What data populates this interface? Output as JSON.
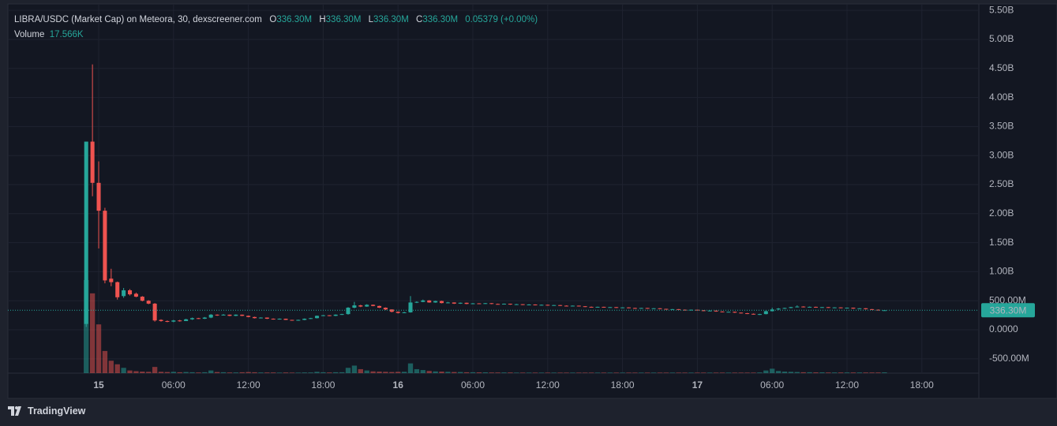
{
  "chart_data": {
    "type": "candlestick",
    "legend": {
      "title": "LIBRA/USDC (Market Cap) on Meteora, 30, dexscreener.com",
      "o": "O",
      "o_value": "336.30M",
      "h": "H",
      "h_value": "336.30M",
      "l": "L",
      "l_value": "336.30M",
      "c": "C",
      "c_value": "336.30M",
      "change": "0.05379 (+0.00%)",
      "volume": "Volume",
      "volume_value": "17.566K"
    },
    "last_price_label": "336.30M",
    "up_color": "#26a69a",
    "down_color": "#ef5350",
    "xlim": [
      -7.28,
      70.57
    ],
    "xticks": [
      {
        "value": 0,
        "label": "15"
      },
      {
        "value": 6,
        "label": "06:00"
      },
      {
        "value": 12,
        "label": "12:00"
      },
      {
        "value": 18,
        "label": "18:00"
      },
      {
        "value": 24,
        "label": "16"
      },
      {
        "value": 30,
        "label": "06:00"
      },
      {
        "value": 36,
        "label": "12:00"
      },
      {
        "value": 42,
        "label": "18:00"
      },
      {
        "value": 48,
        "label": "17"
      },
      {
        "value": 54,
        "label": "06:00"
      },
      {
        "value": 60,
        "label": "12:00"
      },
      {
        "value": 66,
        "label": "18:00"
      }
    ],
    "ylim": [
      -747000000.0,
      5611000000.0
    ],
    "yticks": [
      {
        "value": -500000000.0,
        "label": "-500.00M"
      },
      {
        "value": 0,
        "label": "0.0000"
      },
      {
        "value": 500000000.0,
        "label": "500.00M"
      },
      {
        "value": 1000000000.0,
        "label": "1.00B"
      },
      {
        "value": 1500000000.0,
        "label": "1.50B"
      },
      {
        "value": 2000000000.0,
        "label": "2.00B"
      },
      {
        "value": 2500000000.0,
        "label": "2.50B"
      },
      {
        "value": 3000000000.0,
        "label": "3.00B"
      },
      {
        "value": 3500000000.0,
        "label": "3.50B"
      },
      {
        "value": 4000000000.0,
        "label": "4.00B"
      },
      {
        "value": 4500000000.0,
        "label": "4.50B"
      },
      {
        "value": 5000000000.0,
        "label": "5.00B"
      },
      {
        "value": 5500000000.0,
        "label": "5.50B"
      }
    ],
    "grid": true,
    "x": [
      -1,
      -0.5,
      0,
      0.5,
      1,
      1.5,
      2,
      2.5,
      3,
      3.5,
      4,
      4.5,
      5,
      5.5,
      6,
      6.5,
      7,
      7.5,
      8,
      8.5,
      9,
      9.5,
      10,
      10.5,
      11,
      11.5,
      12,
      12.5,
      13,
      13.5,
      14,
      14.5,
      15,
      15.5,
      16,
      16.5,
      17,
      17.5,
      18,
      18.5,
      19,
      19.5,
      20,
      20.5,
      21,
      21.5,
      22,
      22.5,
      23,
      23.5,
      24,
      24.5,
      25,
      25.5,
      26,
      26.5,
      27,
      27.5,
      28,
      28.5,
      29,
      29.5,
      30,
      30.5,
      31,
      31.5,
      32,
      32.5,
      33,
      33.5,
      34,
      34.5,
      35,
      35.5,
      36,
      36.5,
      37,
      37.5,
      38,
      38.5,
      39,
      39.5,
      40,
      40.5,
      41,
      41.5,
      42,
      42.5,
      43,
      43.5,
      44,
      44.5,
      45,
      45.5,
      46,
      46.5,
      47,
      47.5,
      48,
      48.5,
      49,
      49.5,
      50,
      50.5,
      51,
      51.5,
      52,
      52.5,
      53,
      53.5,
      54,
      54.5,
      55,
      55.5,
      56,
      56.5,
      57,
      57.5,
      58,
      58.5,
      59,
      59.5,
      60,
      60.5,
      61,
      61.5,
      62,
      62.5,
      63
    ],
    "open": [
      100000000.0,
      3240000000.0,
      2530000000.0,
      2050000000.0,
      880000000.0,
      820000000.0,
      580000000.0,
      680000000.0,
      620000000.0,
      570000000.0,
      500000000.0,
      450000000.0,
      170000000.0,
      150000000.0,
      140000000.0,
      160000000.0,
      150000000.0,
      180000000.0,
      200000000.0,
      190000000.0,
      210000000.0,
      260000000.0,
      250000000.0,
      260000000.0,
      240000000.0,
      260000000.0,
      240000000.0,
      220000000.0,
      200000000.0,
      210000000.0,
      190000000.0,
      180000000.0,
      190000000.0,
      170000000.0,
      160000000.0,
      170000000.0,
      190000000.0,
      200000000.0,
      240000000.0,
      250000000.0,
      240000000.0,
      260000000.0,
      270000000.0,
      380000000.0,
      420000000.0,
      400000000.0,
      430000000.0,
      410000000.0,
      380000000.0,
      350000000.0,
      310000000.0,
      290000000.0,
      300000000.0,
      470000000.0,
      480000000.0,
      505000000.0,
      470000000.0,
      495000000.0,
      460000000.0,
      470000000.0,
      450000000.0,
      465000000.0,
      445000000.0,
      455000000.0,
      450000000.0,
      458000000.0,
      445000000.0,
      440000000.0,
      448000000.0,
      435000000.0,
      440000000.0,
      430000000.0,
      435000000.0,
      425000000.0,
      430000000.0,
      420000000.0,
      425000000.0,
      415000000.0,
      410000000.0,
      415000000.0,
      405000000.0,
      395000000.0,
      390000000.0,
      395000000.0,
      385000000.0,
      390000000.0,
      380000000.0,
      385000000.0,
      375000000.0,
      370000000.0,
      375000000.0,
      365000000.0,
      370000000.0,
      360000000.0,
      350000000.0,
      355000000.0,
      345000000.0,
      340000000.0,
      345000000.0,
      335000000.0,
      325000000.0,
      330000000.0,
      315000000.0,
      305000000.0,
      310000000.0,
      295000000.0,
      285000000.0,
      275000000.0,
      265000000.0,
      270000000.0,
      320000000.0,
      350000000.0,
      365000000.0,
      375000000.0,
      390000000.0,
      400000000.0,
      390000000.0,
      395000000.0,
      385000000.0,
      390000000.0,
      380000000.0,
      385000000.0,
      375000000.0,
      380000000.0,
      365000000.0,
      370000000.0,
      355000000.0,
      345000000.0,
      336300000.0
    ],
    "high": [
      3240000000.0,
      4570000000.0,
      2900000000.0,
      2100000000.0,
      1050000000.0,
      830000000.0,
      720000000.0,
      700000000.0,
      640000000.0,
      580000000.0,
      510000000.0,
      460000000.0,
      180000000.0,
      160000000.0,
      170000000.0,
      170000000.0,
      190000000.0,
      210000000.0,
      205000000.0,
      220000000.0,
      270000000.0,
      265000000.0,
      270000000.0,
      262000000.0,
      265000000.0,
      262000000.0,
      245000000.0,
      225000000.0,
      215000000.0,
      212000000.0,
      195000000.0,
      195000000.0,
      192000000.0,
      172000000.0,
      175000000.0,
      195000000.0,
      205000000.0,
      245000000.0,
      255000000.0,
      252000000.0,
      265000000.0,
      275000000.0,
      390000000.0,
      480000000.0,
      430000000.0,
      440000000.0,
      435000000.0,
      415000000.0,
      385000000.0,
      352000000.0,
      315000000.0,
      310000000.0,
      580000000.0,
      490000000.0,
      520000000.0,
      510000000.0,
      500000000.0,
      500000000.0,
      480000000.0,
      472000000.0,
      470000000.0,
      468000000.0,
      460000000.0,
      458000000.0,
      462000000.0,
      460000000.0,
      450000000.0,
      452000000.0,
      450000000.0,
      445000000.0,
      442000000.0,
      440000000.0,
      438000000.0,
      435000000.0,
      432000000.0,
      428000000.0,
      427000000.0,
      420000000.0,
      418000000.0,
      417000000.0,
      408000000.0,
      400000000.0,
      398000000.0,
      397000000.0,
      392000000.0,
      392000000.0,
      388000000.0,
      387000000.0,
      380000000.0,
      378000000.0,
      377000000.0,
      372000000.0,
      372000000.0,
      362000000.0,
      358000000.0,
      357000000.0,
      350000000.0,
      348000000.0,
      347000000.0,
      340000000.0,
      335000000.0,
      332000000.0,
      318000000.0,
      312000000.0,
      312000000.0,
      298000000.0,
      290000000.0,
      280000000.0,
      275000000.0,
      330000000.0,
      380000000.0,
      375000000.0,
      380000000.0,
      395000000.0,
      420000000.0,
      405000000.0,
      400000000.0,
      398000000.0,
      392000000.0,
      392000000.0,
      388000000.0,
      387000000.0,
      382000000.0,
      382000000.0,
      372000000.0,
      372000000.0,
      358000000.0,
      350000000.0,
      336300000.0
    ],
    "low": [
      50000000.0,
      2300000000.0,
      1400000000.0,
      800000000.0,
      750000000.0,
      520000000.0,
      550000000.0,
      590000000.0,
      560000000.0,
      490000000.0,
      440000000.0,
      140000000.0,
      140000000.0,
      130000000.0,
      130000000.0,
      140000000.0,
      150000000.0,
      170000000.0,
      185000000.0,
      185000000.0,
      200000000.0,
      240000000.0,
      245000000.0,
      235000000.0,
      235000000.0,
      235000000.0,
      215000000.0,
      195000000.0,
      195000000.0,
      185000000.0,
      175000000.0,
      175000000.0,
      168000000.0,
      155000000.0,
      155000000.0,
      165000000.0,
      185000000.0,
      195000000.0,
      235000000.0,
      235000000.0,
      235000000.0,
      255000000.0,
      260000000.0,
      370000000.0,
      390000000.0,
      395000000.0,
      405000000.0,
      375000000.0,
      340000000.0,
      300000000.0,
      280000000.0,
      285000000.0,
      295000000.0,
      460000000.0,
      475000000.0,
      465000000.0,
      465000000.0,
      455000000.0,
      455000000.0,
      445000000.0,
      445000000.0,
      440000000.0,
      440000000.0,
      445000000.0,
      445000000.0,
      440000000.0,
      435000000.0,
      435000000.0,
      430000000.0,
      430000000.0,
      425000000.0,
      425000000.0,
      420000000.0,
      420000000.0,
      415000000.0,
      415000000.0,
      410000000.0,
      405000000.0,
      405000000.0,
      400000000.0,
      390000000.0,
      385000000.0,
      385000000.0,
      380000000.0,
      380000000.0,
      375000000.0,
      375000000.0,
      370000000.0,
      365000000.0,
      365000000.0,
      360000000.0,
      360000000.0,
      355000000.0,
      345000000.0,
      345000000.0,
      340000000.0,
      335000000.0,
      335000000.0,
      330000000.0,
      320000000.0,
      320000000.0,
      310000000.0,
      300000000.0,
      300000000.0,
      290000000.0,
      280000000.0,
      270000000.0,
      260000000.0,
      255000000.0,
      265000000.0,
      315000000.0,
      340000000.0,
      360000000.0,
      370000000.0,
      385000000.0,
      385000000.0,
      385000000.0,
      380000000.0,
      380000000.0,
      375000000.0,
      375000000.0,
      370000000.0,
      370000000.0,
      360000000.0,
      360000000.0,
      350000000.0,
      340000000.0,
      338000000.0,
      336300000.0
    ],
    "close": [
      3240000000.0,
      2530000000.0,
      2050000000.0,
      850000000.0,
      820000000.0,
      560000000.0,
      680000000.0,
      610000000.0,
      570000000.0,
      500000000.0,
      450000000.0,
      160000000.0,
      150000000.0,
      140000000.0,
      160000000.0,
      150000000.0,
      180000000.0,
      200000000.0,
      190000000.0,
      210000000.0,
      260000000.0,
      250000000.0,
      260000000.0,
      240000000.0,
      260000000.0,
      240000000.0,
      220000000.0,
      200000000.0,
      210000000.0,
      190000000.0,
      180000000.0,
      190000000.0,
      170000000.0,
      160000000.0,
      170000000.0,
      190000000.0,
      200000000.0,
      240000000.0,
      250000000.0,
      240000000.0,
      260000000.0,
      270000000.0,
      380000000.0,
      420000000.0,
      400000000.0,
      430000000.0,
      410000000.0,
      380000000.0,
      350000000.0,
      310000000.0,
      290000000.0,
      300000000.0,
      470000000.0,
      480000000.0,
      505000000.0,
      470000000.0,
      495000000.0,
      460000000.0,
      470000000.0,
      450000000.0,
      465000000.0,
      445000000.0,
      455000000.0,
      450000000.0,
      458000000.0,
      445000000.0,
      440000000.0,
      448000000.0,
      435000000.0,
      440000000.0,
      430000000.0,
      435000000.0,
      425000000.0,
      430000000.0,
      420000000.0,
      425000000.0,
      415000000.0,
      410000000.0,
      415000000.0,
      405000000.0,
      395000000.0,
      390000000.0,
      395000000.0,
      385000000.0,
      390000000.0,
      380000000.0,
      385000000.0,
      375000000.0,
      370000000.0,
      375000000.0,
      365000000.0,
      370000000.0,
      360000000.0,
      350000000.0,
      355000000.0,
      345000000.0,
      340000000.0,
      345000000.0,
      335000000.0,
      325000000.0,
      330000000.0,
      315000000.0,
      305000000.0,
      310000000.0,
      295000000.0,
      285000000.0,
      275000000.0,
      265000000.0,
      270000000.0,
      320000000.0,
      350000000.0,
      365000000.0,
      375000000.0,
      390000000.0,
      400000000.0,
      390000000.0,
      395000000.0,
      385000000.0,
      390000000.0,
      380000000.0,
      385000000.0,
      375000000.0,
      380000000.0,
      365000000.0,
      370000000.0,
      355000000.0,
      345000000.0,
      342000000.0,
      336300000.0
    ],
    "volume": [
      2100000.0,
      1800000.0,
      1100000.0,
      500000.0,
      280000.0,
      200000.0,
      120000.0,
      60000.0,
      45000.0,
      35000.0,
      30000.0,
      140000.0,
      30000.0,
      25000.0,
      30000.0,
      20000.0,
      25000.0,
      20000.0,
      15000.0,
      20000.0,
      60000.0,
      25000.0,
      20000.0,
      15000.0,
      15000.0,
      20000.0,
      25000.0,
      20000.0,
      15000.0,
      15000.0,
      15000.0,
      12000.0,
      15000.0,
      12000.0,
      12000.0,
      15000.0,
      15000.0,
      30000.0,
      20000.0,
      15000.0,
      20000.0,
      20000.0,
      120000.0,
      170000.0,
      90000.0,
      60000.0,
      40000.0,
      35000.0,
      30000.0,
      25000.0,
      30000.0,
      30000.0,
      220000.0,
      90000.0,
      70000.0,
      50000.0,
      40000.0,
      35000.0,
      30000.0,
      25000.0,
      25000.0,
      20000.0,
      20000.0,
      18000.0,
      18000.0,
      15000.0,
      15000.0,
      15000.0,
      15000.0,
      12000.0,
      12000.0,
      12000.0,
      12000.0,
      12000.0,
      12000.0,
      12000.0,
      12000.0,
      12000.0,
      12000.0,
      12000.0,
      12000.0,
      12000.0,
      12000.0,
      12000.0,
      12000.0,
      12000.0,
      12000.0,
      12000.0,
      12000.0,
      12000.0,
      12000.0,
      12000.0,
      12000.0,
      12000.0,
      12000.0,
      12000.0,
      12000.0,
      12000.0,
      12000.0,
      12000.0,
      12000.0,
      12000.0,
      12000.0,
      12000.0,
      12000.0,
      12000.0,
      12000.0,
      12000.0,
      15000.0,
      60000.0,
      100000.0,
      50000.0,
      35000.0,
      30000.0,
      25000.0,
      20000.0,
      20000.0,
      18000.0,
      18000.0,
      15000.0,
      15000.0,
      15000.0,
      15000.0,
      15000.0,
      15000.0,
      15000.0,
      15000.0,
      15000.0,
      17566.0
    ]
  },
  "brand": "TradingView"
}
